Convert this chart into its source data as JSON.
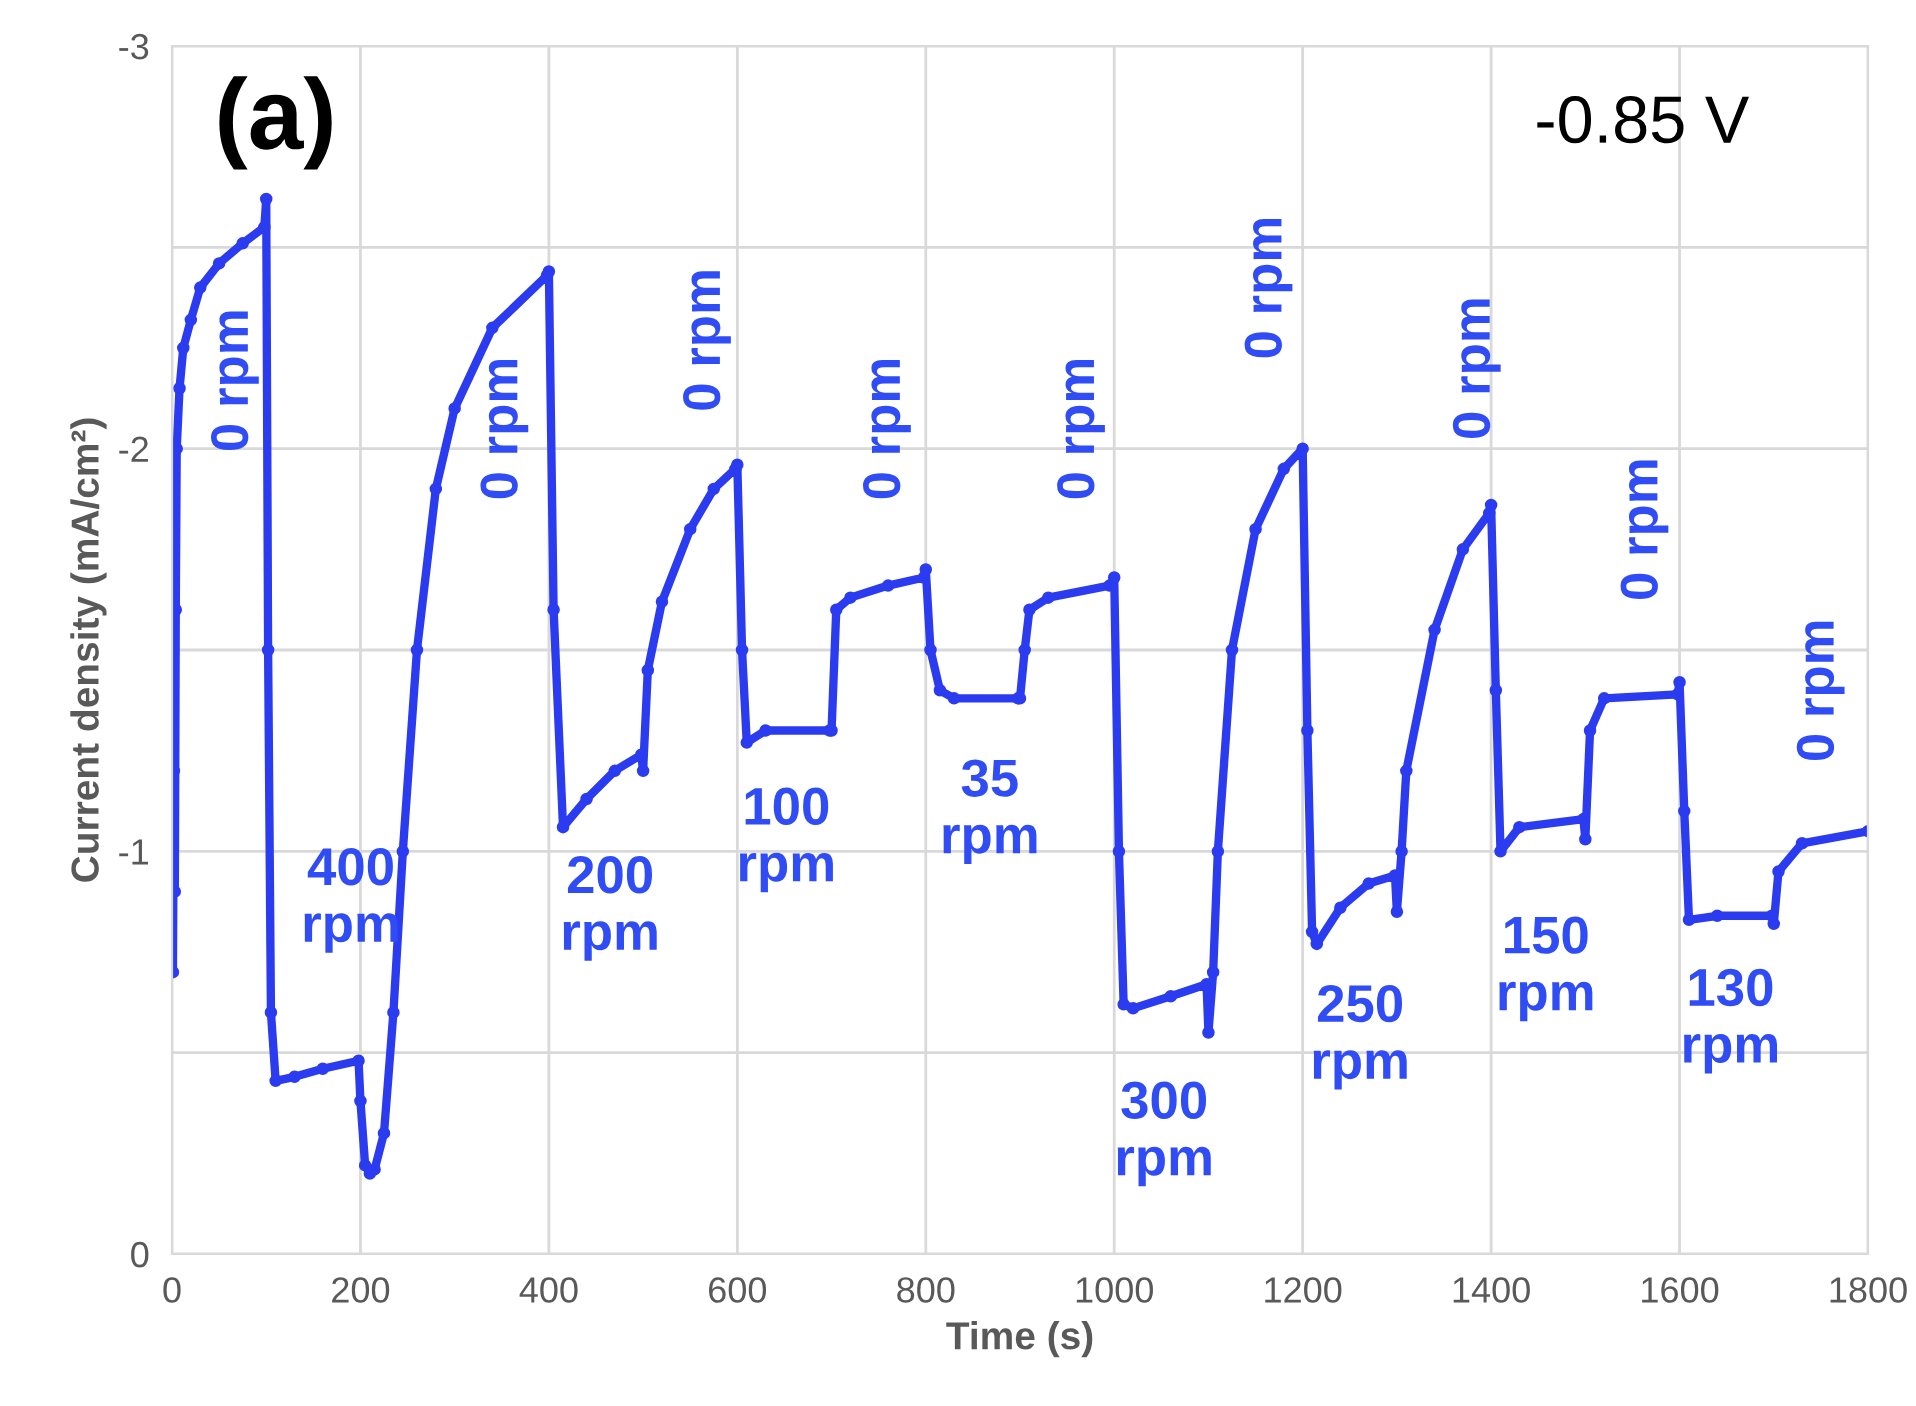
{
  "chart_data": {
    "type": "line",
    "xlabel": "Time (s)",
    "ylabel": "Current density (mA/cm²)",
    "xlim": [
      0,
      1800
    ],
    "xticks": [
      0,
      200,
      400,
      600,
      800,
      1000,
      1200,
      1400,
      1600,
      1800
    ],
    "ylim": [
      0,
      -3
    ],
    "yticks": [
      0,
      {
        "value": -0.5,
        "label": null
      },
      -1,
      {
        "value": -1.5,
        "label": null
      },
      -2,
      {
        "value": -2.5,
        "label": null
      },
      -3
    ],
    "grid": true,
    "marker": "circle",
    "line_style": "solid",
    "series": [
      {
        "color": "#2b3cf0",
        "x": [
          0,
          1,
          2,
          3,
          4,
          5,
          8,
          12,
          20,
          30,
          50,
          75,
          98,
          100,
          102,
          105,
          110,
          130,
          160,
          198,
          200,
          205,
          210,
          215,
          225,
          235,
          245,
          260,
          280,
          300,
          340,
          398,
          400,
          405,
          415,
          440,
          470,
          498,
          500,
          505,
          520,
          550,
          575,
          598,
          600,
          605,
          610,
          630,
          698,
          700,
          705,
          720,
          760,
          798,
          800,
          805,
          815,
          830,
          898,
          900,
          905,
          910,
          930,
          995,
          1000,
          1005,
          1010,
          1020,
          1060,
          1098,
          1100,
          1105,
          1110,
          1125,
          1150,
          1180,
          1200,
          1205,
          1210,
          1215,
          1240,
          1270,
          1298,
          1300,
          1305,
          1310,
          1340,
          1370,
          1398,
          1400,
          1405,
          1410,
          1430,
          1498,
          1500,
          1505,
          1520,
          1598,
          1600,
          1605,
          1610,
          1640,
          1698,
          1700,
          1705,
          1730,
          1800
        ],
        "values": [
          -1.8,
          -0.7,
          -1.2,
          -0.9,
          -1.6,
          -2.0,
          -2.15,
          -2.25,
          -2.32,
          -2.4,
          -2.46,
          -2.51,
          -2.55,
          -2.62,
          -1.5,
          -0.6,
          -0.43,
          -0.44,
          -0.46,
          -0.48,
          -0.38,
          -0.22,
          -0.2,
          -0.21,
          -0.3,
          -0.6,
          -1.0,
          -1.5,
          -1.9,
          -2.1,
          -2.3,
          -2.43,
          -2.44,
          -1.6,
          -1.06,
          -1.13,
          -1.2,
          -1.24,
          -1.2,
          -1.45,
          -1.62,
          -1.8,
          -1.9,
          -1.95,
          -1.96,
          -1.5,
          -1.27,
          -1.3,
          -1.3,
          -1.3,
          -1.6,
          -1.63,
          -1.66,
          -1.68,
          -1.7,
          -1.5,
          -1.4,
          -1.38,
          -1.38,
          -1.38,
          -1.5,
          -1.6,
          -1.63,
          -1.66,
          -1.68,
          -1.0,
          -0.62,
          -0.61,
          -0.64,
          -0.67,
          -0.55,
          -0.7,
          -1.0,
          -1.5,
          -1.8,
          -1.95,
          -2.0,
          -1.3,
          -0.8,
          -0.77,
          -0.86,
          -0.92,
          -0.94,
          -0.85,
          -1.0,
          -1.2,
          -1.55,
          -1.75,
          -1.84,
          -1.86,
          -1.4,
          -1.0,
          -1.06,
          -1.08,
          -1.03,
          -1.3,
          -1.38,
          -1.39,
          -1.42,
          -1.1,
          -0.83,
          -0.84,
          -0.84,
          -0.82,
          -0.95,
          -1.02,
          -1.05
        ]
      }
    ],
    "annotations": [
      "(a)",
      "-0.85 V",
      "0 rpm",
      "400\nrpm",
      "0 rpm",
      "200\nrpm",
      "0 rpm",
      "100\nrpm",
      "0 rpm",
      "35\nrpm",
      "0 rpm",
      "300\nrpm",
      "0 rpm",
      "250\nrpm",
      "0 rpm",
      "150\nrpm",
      "0 rpm",
      "130\nrpm",
      "0 rpm"
    ]
  }
}
